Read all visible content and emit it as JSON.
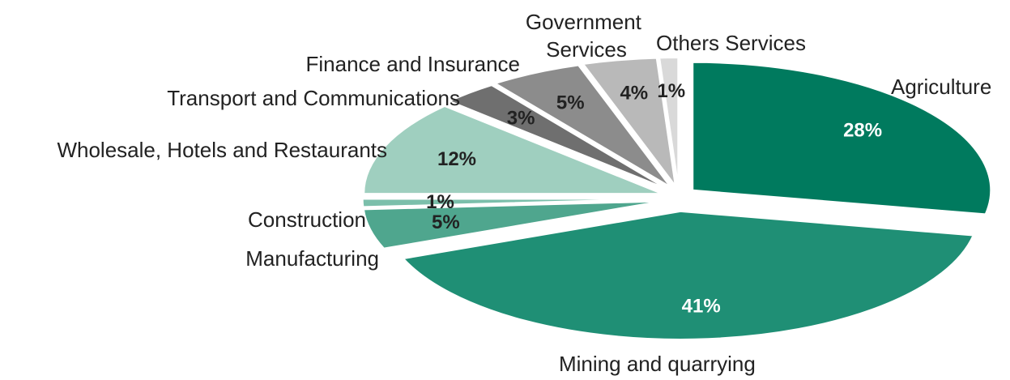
{
  "chart_data": {
    "type": "pie",
    "title": "",
    "slices": [
      {
        "label": "Agriculture",
        "value": 28,
        "display": "28%",
        "color": "#007a5e",
        "text_color": "#ffffff"
      },
      {
        "label": "Mining and quarrying",
        "value": 41,
        "display": "41%",
        "color": "#1f8f75",
        "text_color": "#ffffff"
      },
      {
        "label": "Manufacturing",
        "value": 5,
        "display": "5%",
        "color": "#4fa68e",
        "text_color": "#222222"
      },
      {
        "label": "Construction",
        "value": 1,
        "display": "1%",
        "color": "#7bbfab",
        "text_color": "#222222"
      },
      {
        "label": "Wholesale, Hotels and Restaurants",
        "value": 12,
        "display": "12%",
        "color": "#9fcfbf",
        "text_color": "#222222"
      },
      {
        "label": "Transport and Communications",
        "value": 3,
        "display": "3%",
        "color": "#6f6f6f",
        "text_color": "#222222"
      },
      {
        "label": "Finance and Insurance",
        "value": 5,
        "display": "5%",
        "color": "#8c8c8c",
        "text_color": "#222222"
      },
      {
        "label": "Government Services",
        "value": 4,
        "display": "4%",
        "color": "#b9b9b9",
        "text_color": "#222222"
      },
      {
        "label": "Others Services",
        "value": 1,
        "display": "1%",
        "color": "#d9d9d9",
        "text_color": "#222222"
      }
    ]
  }
}
